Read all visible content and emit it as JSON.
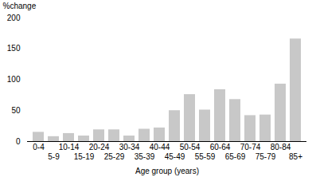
{
  "chart_data": {
    "type": "bar",
    "categories": [
      "0-4",
      "5-9",
      "10-14",
      "15-19",
      "20-24",
      "25-29",
      "30-34",
      "35-39",
      "40-44",
      "45-49",
      "50-54",
      "55-59",
      "60-64",
      "65-69",
      "70-74",
      "75-79",
      "80-84",
      "85+"
    ],
    "values": [
      15,
      8,
      13,
      9,
      19,
      19,
      9,
      20,
      22,
      50,
      76,
      51,
      84,
      68,
      42,
      43,
      93,
      166
    ],
    "color": "#c8c8c8",
    "xlabel": "Age group (years)",
    "ylabel": "%change",
    "ylim": [
      0,
      200
    ],
    "yticks": [
      0,
      50,
      100,
      150,
      200
    ],
    "grid": false
  }
}
